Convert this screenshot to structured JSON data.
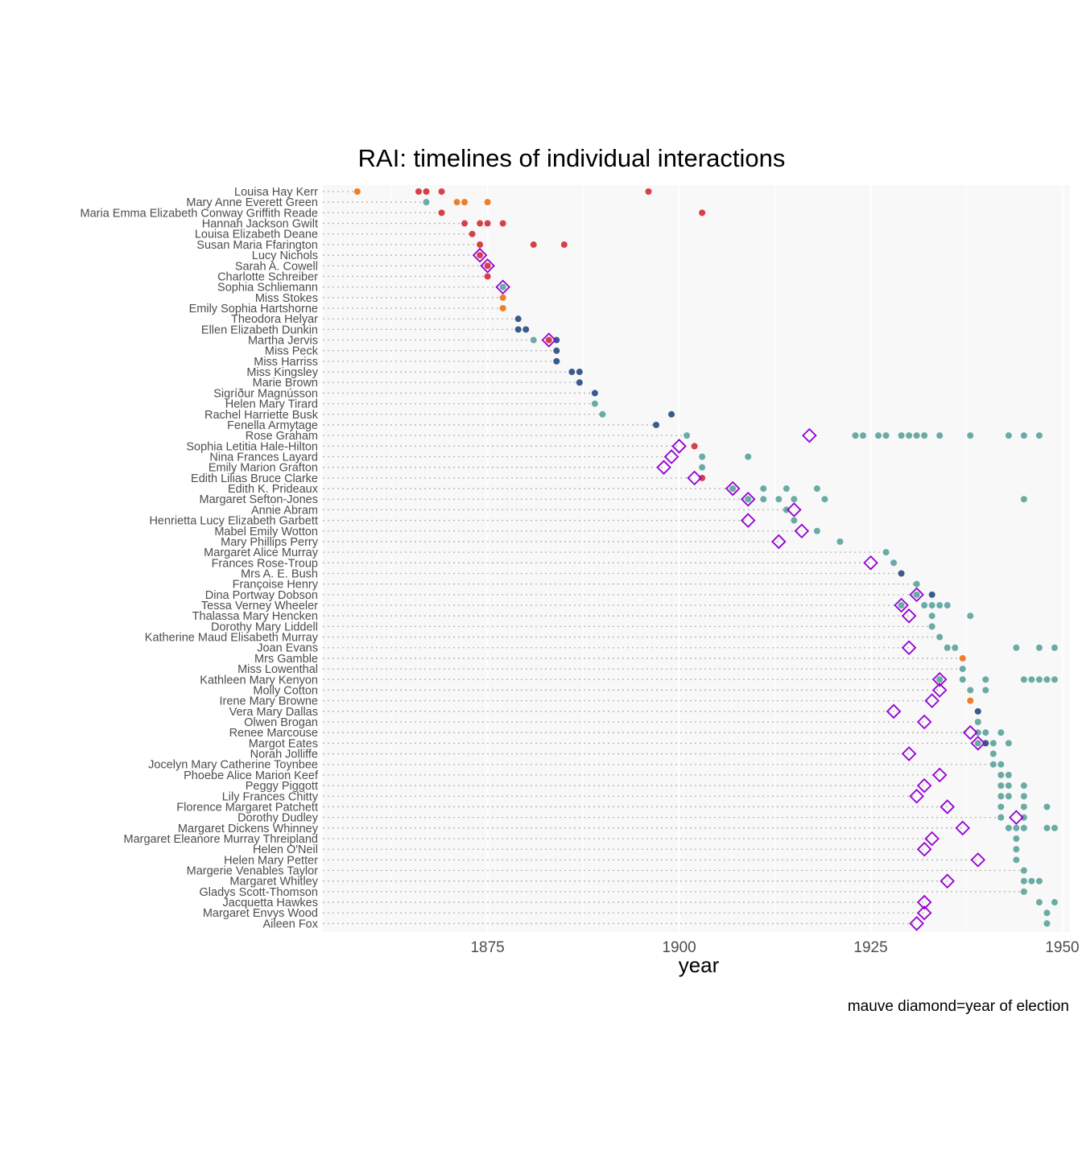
{
  "chart_data": {
    "type": "scatter",
    "title": "RAI: timelines of individual interactions",
    "xlabel": "year",
    "ylabel": "",
    "caption": "mauve diamond=year of election",
    "xlim": [
      1853.5,
      1951
    ],
    "xticks": [
      1875,
      1900,
      1925,
      1950
    ],
    "grid": true,
    "legend": "none",
    "colors": {
      "panel": "#f8f8f8",
      "grid": "#ffffff",
      "guide": "#b3b3b3",
      "election": "#9400d3",
      "red": "#d7404b",
      "orange": "#ec7f2b",
      "teal": "#6aaba4",
      "navy": "#3b5a8d"
    },
    "people": [
      {
        "name": "Louisa Hay Kerr",
        "start": 1858,
        "points": [
          [
            1858,
            "orange"
          ],
          [
            1866,
            "red"
          ],
          [
            1867,
            "red"
          ],
          [
            1869,
            "red"
          ],
          [
            1896,
            "red"
          ]
        ],
        "elected": null
      },
      {
        "name": "Mary Anne Everett Green",
        "start": 1867,
        "points": [
          [
            1867,
            "teal"
          ],
          [
            1871,
            "orange"
          ],
          [
            1872,
            "orange"
          ],
          [
            1875,
            "orange"
          ]
        ],
        "elected": null
      },
      {
        "name": "Maria Emma Elizabeth Conway Griffith Reade",
        "start": 1869,
        "points": [
          [
            1869,
            "red"
          ],
          [
            1903,
            "red"
          ]
        ],
        "elected": null
      },
      {
        "name": "Hannah Jackson Gwilt",
        "start": 1872,
        "points": [
          [
            1872,
            "red"
          ],
          [
            1874,
            "red"
          ],
          [
            1875,
            "red"
          ],
          [
            1877,
            "red"
          ]
        ],
        "elected": null
      },
      {
        "name": "Louisa Elizabeth Deane",
        "start": 1873,
        "points": [
          [
            1873,
            "red"
          ]
        ],
        "elected": null
      },
      {
        "name": "Susan Maria Ffarington",
        "start": 1874,
        "points": [
          [
            1874,
            "red"
          ],
          [
            1881,
            "red"
          ],
          [
            1885,
            "red"
          ]
        ],
        "elected": null
      },
      {
        "name": "Lucy Nichols",
        "start": 1874,
        "points": [
          [
            1874,
            "red"
          ]
        ],
        "elected": 1874
      },
      {
        "name": "Sarah A. Cowell",
        "start": 1875,
        "points": [
          [
            1875,
            "red"
          ]
        ],
        "elected": 1875
      },
      {
        "name": "Charlotte Schreiber",
        "start": 1875,
        "points": [
          [
            1875,
            "red"
          ]
        ],
        "elected": null
      },
      {
        "name": "Sophia Schliemann",
        "start": 1877,
        "points": [
          [
            1877,
            "teal"
          ]
        ],
        "elected": 1877
      },
      {
        "name": "Miss Stokes",
        "start": 1877,
        "points": [
          [
            1877,
            "orange"
          ]
        ],
        "elected": null
      },
      {
        "name": "Emily Sophia Hartshorne",
        "start": 1877,
        "points": [
          [
            1877,
            "orange"
          ]
        ],
        "elected": null
      },
      {
        "name": "Theodora Helyar",
        "start": 1879,
        "points": [
          [
            1879,
            "navy"
          ]
        ],
        "elected": null
      },
      {
        "name": "Ellen Elizabeth Dunkin",
        "start": 1879,
        "points": [
          [
            1879,
            "navy"
          ],
          [
            1880,
            "navy"
          ]
        ],
        "elected": null
      },
      {
        "name": "Martha Jervis",
        "start": 1881,
        "points": [
          [
            1881,
            "teal"
          ],
          [
            1883,
            "red"
          ],
          [
            1884,
            "navy"
          ]
        ],
        "elected": 1883
      },
      {
        "name": "Miss Peck",
        "start": 1884,
        "points": [
          [
            1884,
            "navy"
          ]
        ],
        "elected": null
      },
      {
        "name": "Miss Harriss",
        "start": 1884,
        "points": [
          [
            1884,
            "navy"
          ]
        ],
        "elected": null
      },
      {
        "name": "Miss Kingsley",
        "start": 1886,
        "points": [
          [
            1886,
            "navy"
          ],
          [
            1887,
            "navy"
          ]
        ],
        "elected": null
      },
      {
        "name": "Marie Brown",
        "start": 1887,
        "points": [
          [
            1887,
            "navy"
          ]
        ],
        "elected": null
      },
      {
        "name": "Sigríður Magnússon",
        "start": 1889,
        "points": [
          [
            1889,
            "navy"
          ]
        ],
        "elected": null
      },
      {
        "name": "Helen Mary Tirard",
        "start": 1889,
        "points": [
          [
            1889,
            "teal"
          ]
        ],
        "elected": null
      },
      {
        "name": "Rachel Harriette Busk",
        "start": 1890,
        "points": [
          [
            1890,
            "teal"
          ],
          [
            1899,
            "navy"
          ]
        ],
        "elected": null
      },
      {
        "name": "Fenella Armytage",
        "start": 1897,
        "points": [
          [
            1897,
            "navy"
          ]
        ],
        "elected": null
      },
      {
        "name": "Rose Graham",
        "start": 1901,
        "points": [
          [
            1901,
            "teal"
          ],
          [
            1923,
            "teal"
          ],
          [
            1924,
            "teal"
          ],
          [
            1926,
            "teal"
          ],
          [
            1927,
            "teal"
          ],
          [
            1929,
            "teal"
          ],
          [
            1930,
            "teal"
          ],
          [
            1931,
            "teal"
          ],
          [
            1932,
            "teal"
          ],
          [
            1934,
            "teal"
          ],
          [
            1938,
            "teal"
          ],
          [
            1943,
            "teal"
          ],
          [
            1945,
            "teal"
          ],
          [
            1947,
            "teal"
          ]
        ],
        "elected": 1917
      },
      {
        "name": "Sophia Letitia Hale-Hilton",
        "start": 1900,
        "points": [
          [
            1902,
            "red"
          ]
        ],
        "elected": 1900
      },
      {
        "name": "Nina Frances Layard",
        "start": 1899,
        "points": [
          [
            1903,
            "teal"
          ],
          [
            1909,
            "teal"
          ]
        ],
        "elected": 1899
      },
      {
        "name": "Emily Marion Grafton",
        "start": 1898,
        "points": [
          [
            1903,
            "teal"
          ]
        ],
        "elected": 1898
      },
      {
        "name": "Edith Lilias Bruce Clarke",
        "start": 1902,
        "points": [
          [
            1903,
            "red"
          ]
        ],
        "elected": 1902
      },
      {
        "name": "Edith K. Prideaux",
        "start": 1907,
        "points": [
          [
            1907,
            "teal"
          ],
          [
            1911,
            "teal"
          ],
          [
            1914,
            "teal"
          ],
          [
            1918,
            "teal"
          ]
        ],
        "elected": 1907
      },
      {
        "name": "Margaret Sefton-Jones",
        "start": 1909,
        "points": [
          [
            1909,
            "teal"
          ],
          [
            1911,
            "teal"
          ],
          [
            1913,
            "teal"
          ],
          [
            1915,
            "teal"
          ],
          [
            1919,
            "teal"
          ],
          [
            1945,
            "teal"
          ]
        ],
        "elected": 1909
      },
      {
        "name": "Annie Abram",
        "start": 1914,
        "points": [
          [
            1914,
            "teal"
          ]
        ],
        "elected": 1915
      },
      {
        "name": "Henrietta Lucy Elizabeth Garbett",
        "start": 1909,
        "points": [
          [
            1915,
            "teal"
          ]
        ],
        "elected": 1909
      },
      {
        "name": "Mabel Emily Wotton",
        "start": 1916,
        "points": [
          [
            1918,
            "teal"
          ]
        ],
        "elected": 1916
      },
      {
        "name": "Mary Phillips Perry",
        "start": 1913,
        "points": [
          [
            1921,
            "teal"
          ]
        ],
        "elected": 1913
      },
      {
        "name": "Margaret Alice Murray",
        "start": 1927,
        "points": [
          [
            1927,
            "teal"
          ]
        ],
        "elected": null
      },
      {
        "name": "Frances Rose-Troup",
        "start": 1925,
        "points": [
          [
            1928,
            "teal"
          ]
        ],
        "elected": 1925
      },
      {
        "name": "Mrs A. E. Bush",
        "start": 1929,
        "points": [
          [
            1929,
            "navy"
          ]
        ],
        "elected": null
      },
      {
        "name": "Françoise Henry",
        "start": 1931,
        "points": [
          [
            1931,
            "teal"
          ]
        ],
        "elected": null
      },
      {
        "name": "Dina Portway Dobson",
        "start": 1931,
        "points": [
          [
            1931,
            "teal"
          ],
          [
            1933,
            "navy"
          ]
        ],
        "elected": 1931
      },
      {
        "name": "Tessa Verney Wheeler",
        "start": 1929,
        "points": [
          [
            1929,
            "teal"
          ],
          [
            1932,
            "teal"
          ],
          [
            1933,
            "teal"
          ],
          [
            1934,
            "teal"
          ],
          [
            1935,
            "teal"
          ]
        ],
        "elected": 1929
      },
      {
        "name": "Thalassa Mary Hencken",
        "start": 1930,
        "points": [
          [
            1933,
            "teal"
          ],
          [
            1938,
            "teal"
          ]
        ],
        "elected": 1930
      },
      {
        "name": "Dorothy Mary Liddell",
        "start": 1933,
        "points": [
          [
            1933,
            "teal"
          ]
        ],
        "elected": null
      },
      {
        "name": "Katherine Maud Elisabeth Murray",
        "start": 1934,
        "points": [
          [
            1934,
            "teal"
          ]
        ],
        "elected": null
      },
      {
        "name": "Joan Evans",
        "start": 1930,
        "points": [
          [
            1935,
            "teal"
          ],
          [
            1936,
            "teal"
          ],
          [
            1944,
            "teal"
          ],
          [
            1947,
            "teal"
          ],
          [
            1949,
            "teal"
          ]
        ],
        "elected": 1930
      },
      {
        "name": "Mrs Gamble",
        "start": 1937,
        "points": [
          [
            1937,
            "orange"
          ]
        ],
        "elected": null
      },
      {
        "name": "Miss Lowenthal",
        "start": 1937,
        "points": [
          [
            1937,
            "teal"
          ]
        ],
        "elected": null
      },
      {
        "name": "Kathleen Mary Kenyon",
        "start": 1934,
        "points": [
          [
            1934,
            "teal"
          ],
          [
            1937,
            "teal"
          ],
          [
            1940,
            "teal"
          ],
          [
            1945,
            "teal"
          ],
          [
            1946,
            "teal"
          ],
          [
            1947,
            "teal"
          ],
          [
            1948,
            "teal"
          ],
          [
            1949,
            "teal"
          ]
        ],
        "elected": 1934
      },
      {
        "name": "Molly Cotton",
        "start": 1934,
        "points": [
          [
            1938,
            "teal"
          ],
          [
            1940,
            "teal"
          ]
        ],
        "elected": 1934
      },
      {
        "name": "Irene Mary Browne",
        "start": 1933,
        "points": [
          [
            1938,
            "orange"
          ]
        ],
        "elected": 1933
      },
      {
        "name": "Vera Mary Dallas",
        "start": 1928,
        "points": [
          [
            1939,
            "navy"
          ]
        ],
        "elected": 1928
      },
      {
        "name": "Olwen Brogan",
        "start": 1932,
        "points": [
          [
            1939,
            "teal"
          ]
        ],
        "elected": 1932
      },
      {
        "name": "Renee Marcouse",
        "start": 1938,
        "points": [
          [
            1939,
            "teal"
          ],
          [
            1940,
            "teal"
          ],
          [
            1942,
            "teal"
          ]
        ],
        "elected": 1938
      },
      {
        "name": "Margot Eates",
        "start": 1939,
        "points": [
          [
            1939,
            "teal"
          ],
          [
            1940,
            "navy"
          ],
          [
            1941,
            "teal"
          ],
          [
            1943,
            "teal"
          ]
        ],
        "elected": 1939
      },
      {
        "name": "Norah Jolliffe",
        "start": 1930,
        "points": [
          [
            1941,
            "teal"
          ]
        ],
        "elected": 1930
      },
      {
        "name": "Jocelyn Mary Catherine Toynbee",
        "start": 1941,
        "points": [
          [
            1941,
            "teal"
          ],
          [
            1942,
            "teal"
          ]
        ],
        "elected": null
      },
      {
        "name": "Phoebe Alice Marion Keef",
        "start": 1934,
        "points": [
          [
            1942,
            "teal"
          ],
          [
            1943,
            "teal"
          ]
        ],
        "elected": 1934
      },
      {
        "name": "Peggy Piggott",
        "start": 1932,
        "points": [
          [
            1942,
            "teal"
          ],
          [
            1943,
            "teal"
          ],
          [
            1945,
            "teal"
          ]
        ],
        "elected": 1932
      },
      {
        "name": "Lily Frances Chitty",
        "start": 1931,
        "points": [
          [
            1942,
            "teal"
          ],
          [
            1943,
            "teal"
          ],
          [
            1945,
            "teal"
          ]
        ],
        "elected": 1931
      },
      {
        "name": "Florence Margaret Patchett",
        "start": 1935,
        "points": [
          [
            1942,
            "teal"
          ],
          [
            1945,
            "teal"
          ],
          [
            1948,
            "teal"
          ]
        ],
        "elected": 1935
      },
      {
        "name": "Dorothy Dudley",
        "start": 1942,
        "points": [
          [
            1942,
            "teal"
          ],
          [
            1945,
            "teal"
          ]
        ],
        "elected": 1944
      },
      {
        "name": "Margaret Dickens Whinney",
        "start": 1937,
        "points": [
          [
            1943,
            "teal"
          ],
          [
            1944,
            "teal"
          ],
          [
            1945,
            "teal"
          ],
          [
            1948,
            "teal"
          ],
          [
            1949,
            "teal"
          ]
        ],
        "elected": 1937
      },
      {
        "name": "Margaret Eleanore Murray Threipland",
        "start": 1933,
        "points": [
          [
            1944,
            "teal"
          ]
        ],
        "elected": 1933
      },
      {
        "name": "Helen O'Neil",
        "start": 1932,
        "points": [
          [
            1944,
            "teal"
          ]
        ],
        "elected": 1932
      },
      {
        "name": "Helen Mary Petter",
        "start": 1939,
        "points": [
          [
            1944,
            "teal"
          ]
        ],
        "elected": 1939
      },
      {
        "name": "Margerie Venables Taylor",
        "start": 1945,
        "points": [
          [
            1945,
            "teal"
          ]
        ],
        "elected": null
      },
      {
        "name": "Margaret Whitley",
        "start": 1935,
        "points": [
          [
            1945,
            "teal"
          ],
          [
            1946,
            "teal"
          ],
          [
            1947,
            "teal"
          ]
        ],
        "elected": 1935
      },
      {
        "name": "Gladys Scott-Thomson",
        "start": 1945,
        "points": [
          [
            1945,
            "teal"
          ]
        ],
        "elected": null
      },
      {
        "name": "Jacquetta Hawkes",
        "start": 1932,
        "points": [
          [
            1947,
            "teal"
          ],
          [
            1949,
            "teal"
          ]
        ],
        "elected": 1932
      },
      {
        "name": "Margaret Envys Wood",
        "start": 1932,
        "points": [
          [
            1948,
            "teal"
          ]
        ],
        "elected": 1932
      },
      {
        "name": "Aileen Fox",
        "start": 1931,
        "points": [
          [
            1948,
            "teal"
          ]
        ],
        "elected": 1931
      }
    ]
  }
}
